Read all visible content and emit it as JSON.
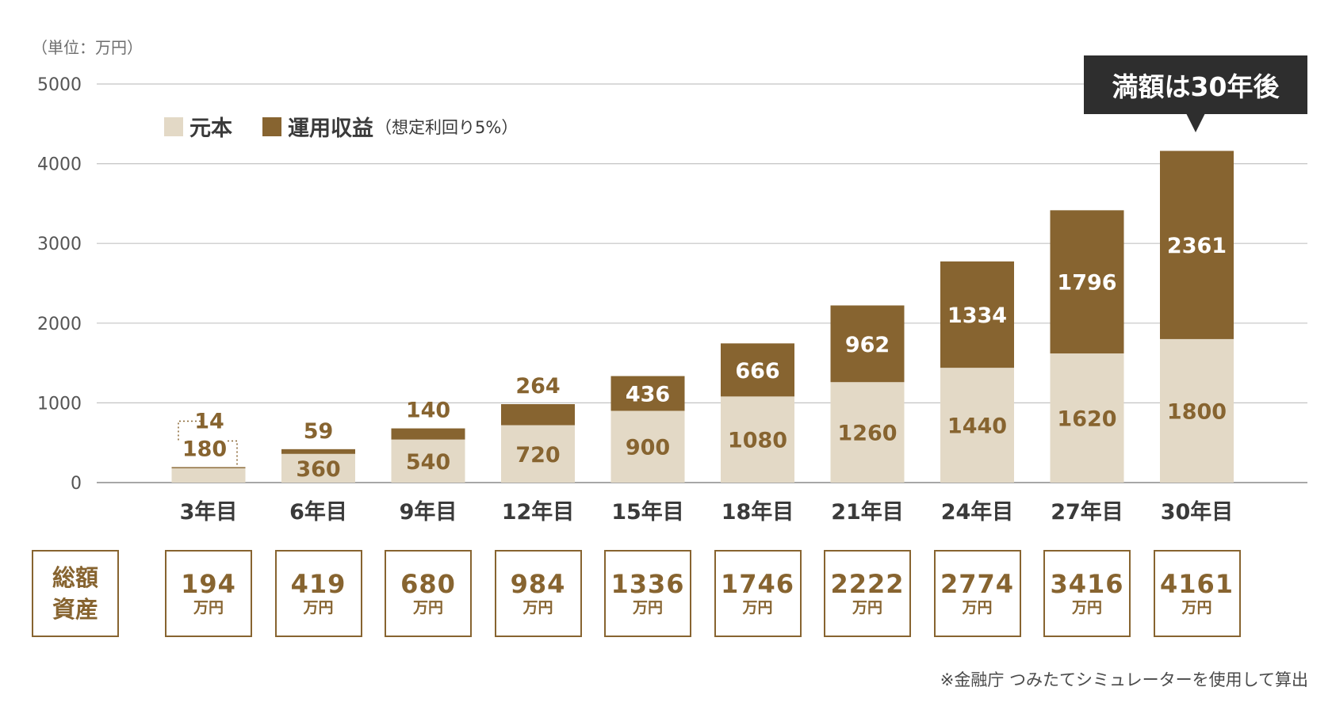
{
  "chart_data": {
    "type": "bar",
    "stacked": true,
    "unit_label": "（単位：万円）",
    "categories": [
      "3年目",
      "6年目",
      "9年目",
      "12年目",
      "15年目",
      "18年目",
      "21年目",
      "24年目",
      "27年目",
      "30年目"
    ],
    "series": [
      {
        "name": "元本",
        "color": "#e3d9c6",
        "values": [
          180,
          360,
          540,
          720,
          900,
          1080,
          1260,
          1440,
          1620,
          1800
        ]
      },
      {
        "name": "運用収益",
        "note": "（想定利回り5%）",
        "color": "#876430",
        "values": [
          14,
          59,
          140,
          264,
          436,
          666,
          962,
          1334,
          1796,
          2361
        ]
      }
    ],
    "totals": [
      194,
      419,
      680,
      984,
      1336,
      1746,
      2222,
      2774,
      3416,
      4161
    ],
    "ylim": [
      0,
      5000
    ],
    "yticks": [
      "0",
      "1000",
      "2000",
      "3000",
      "4000",
      "5000"
    ],
    "grid": true,
    "legend": "top-left",
    "callout": "満額は30年後"
  },
  "total_label": {
    "line1": "総額",
    "line2": "資産"
  },
  "total_unit": "万円",
  "footnote": "※金融庁 つみたてシミュレーターを使用して算出"
}
